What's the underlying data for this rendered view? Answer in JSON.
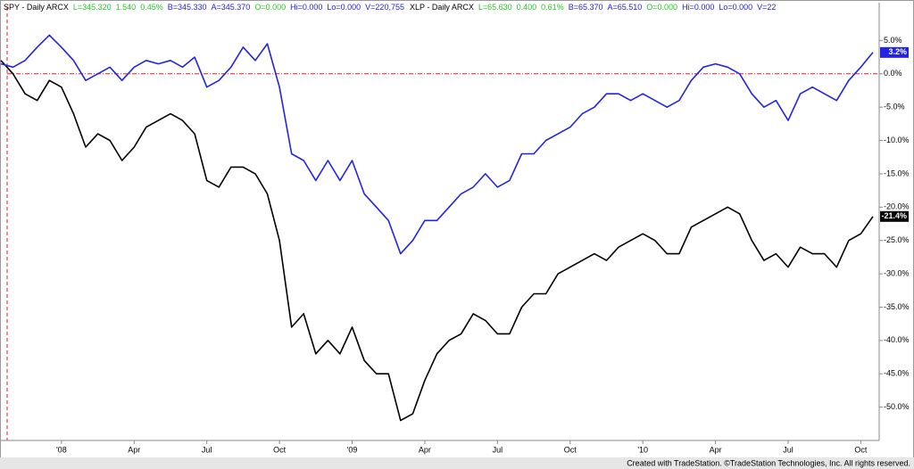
{
  "chart_data": {
    "type": "line",
    "series": [
      {
        "name": "SPY - Daily ARCX",
        "color": "#000000",
        "quote": [
          {
            "text": "L=345.320",
            "color": "#22cc22"
          },
          {
            "text": "1.540",
            "color": "#22cc22"
          },
          {
            "text": "0.45%",
            "color": "#22cc22"
          },
          {
            "text": "B=345.330",
            "color": "#2222dd"
          },
          {
            "text": "A=345.370",
            "color": "#2222dd"
          },
          {
            "text": "O=0.000",
            "color": "#22cc22"
          },
          {
            "text": "Hi=0.000",
            "color": "#2222dd"
          },
          {
            "text": "Lo=0.000",
            "color": "#2222dd"
          },
          {
            "text": "V=220,755",
            "color": "#2222dd"
          }
        ],
        "values": [
          2,
          0,
          -3,
          -4,
          -1,
          -2,
          -6,
          -11,
          -9,
          -10,
          -13,
          -11,
          -8,
          -7,
          -6,
          -7,
          -9,
          -16,
          -17,
          -14,
          -14,
          -15,
          -18,
          -25,
          -38,
          -36,
          -42,
          -40,
          -42,
          -38,
          -43,
          -45,
          -45,
          -52,
          -51,
          -46,
          -42,
          -40,
          -39,
          -36,
          -37,
          -39,
          -39,
          -35,
          -33,
          -33,
          -30,
          -29,
          -28,
          -27,
          -28,
          -26,
          -25,
          -24,
          -25,
          -27,
          -27,
          -23,
          -22,
          -21,
          -20,
          -21,
          -25,
          -28,
          -27,
          -29,
          -26,
          -27,
          -27,
          -29,
          -25,
          -24,
          -21.4
        ],
        "value_labels": [
          null,
          null,
          null,
          null,
          null,
          null,
          null,
          null,
          null,
          null,
          null,
          null,
          null,
          null,
          null,
          null,
          null,
          null,
          null,
          null,
          null,
          null,
          null,
          null,
          null,
          null,
          null,
          null,
          null,
          null,
          null,
          null,
          null,
          null,
          null,
          null,
          null,
          null,
          null,
          null,
          null,
          null,
          null,
          null,
          null,
          null,
          null,
          null,
          null,
          null,
          null,
          null,
          null,
          null,
          null,
          null,
          null,
          null,
          null,
          null,
          null,
          null,
          null,
          null,
          null,
          null,
          null,
          null,
          null,
          null,
          null,
          null,
          "-21.4%"
        ]
      },
      {
        "name": "XLP - Daily ARCX",
        "color": "#2323e6",
        "quote": [
          {
            "text": "L=65.630",
            "color": "#22cc22"
          },
          {
            "text": "0.400",
            "color": "#22cc22"
          },
          {
            "text": "0.61%",
            "color": "#22cc22"
          },
          {
            "text": "B=65.370",
            "color": "#2222dd"
          },
          {
            "text": "A=65.510",
            "color": "#2222dd"
          },
          {
            "text": "O=0.000",
            "color": "#22cc22"
          },
          {
            "text": "Hi=0.000",
            "color": "#2222dd"
          },
          {
            "text": "Lo=0.000",
            "color": "#2222dd"
          },
          {
            "text": "V=22",
            "color": "#2222dd"
          }
        ],
        "values": [
          1.5,
          1,
          2,
          4,
          5.8,
          4,
          2,
          -1,
          0,
          1,
          -1,
          1,
          2,
          1.5,
          2,
          1,
          2.5,
          -2,
          -1,
          1,
          4,
          2,
          4.5,
          -2,
          -12,
          -13,
          -16,
          -13,
          -16,
          -13,
          -18,
          -20,
          -22,
          -27,
          -25,
          -22,
          -22,
          -20,
          -18,
          -17,
          -15,
          -17,
          -16,
          -12,
          -12,
          -10,
          -9,
          -8,
          -6,
          -5,
          -3,
          -3,
          -4,
          -3,
          -4,
          -5,
          -4,
          -1,
          1,
          1.5,
          1,
          0,
          -3,
          -5,
          -4,
          -7,
          -3,
          -2,
          -3,
          -4,
          -1,
          1,
          3.2
        ],
        "value_labels": [
          null,
          null,
          null,
          null,
          null,
          null,
          null,
          null,
          null,
          null,
          null,
          null,
          null,
          null,
          null,
          null,
          null,
          null,
          null,
          null,
          null,
          null,
          null,
          null,
          null,
          null,
          null,
          null,
          null,
          null,
          null,
          null,
          null,
          null,
          null,
          null,
          null,
          null,
          null,
          null,
          null,
          null,
          null,
          null,
          null,
          null,
          null,
          null,
          null,
          null,
          null,
          null,
          null,
          null,
          null,
          null,
          null,
          null,
          null,
          null,
          null,
          null,
          null,
          null,
          null,
          null,
          null,
          null,
          null,
          null,
          null,
          null,
          "3.2%"
        ]
      }
    ],
    "categories": [
      null,
      null,
      null,
      null,
      null,
      "'08",
      null,
      null,
      null,
      null,
      null,
      "Apr",
      null,
      null,
      null,
      null,
      null,
      "Jul",
      null,
      null,
      null,
      null,
      null,
      "Oct",
      null,
      null,
      null,
      null,
      null,
      "'09",
      null,
      null,
      null,
      null,
      null,
      "Apr",
      null,
      null,
      null,
      null,
      null,
      "Jul",
      null,
      null,
      null,
      null,
      null,
      "Oct",
      null,
      null,
      null,
      null,
      null,
      "'10",
      null,
      null,
      null,
      null,
      null,
      "Apr",
      null,
      null,
      null,
      null,
      null,
      "Jul",
      null,
      null,
      null,
      null,
      null,
      "Oct",
      null
    ],
    "ylim": [
      -55,
      10
    ],
    "yticks": [
      {
        "value": 5,
        "label": "5.0%"
      },
      {
        "value": 0,
        "label": "0.0%"
      },
      {
        "value": -5,
        "label": "-5.0%"
      },
      {
        "value": -10,
        "label": "-10.0%"
      },
      {
        "value": -15,
        "label": "-15.0%"
      },
      {
        "value": -20,
        "label": "-20.0%"
      },
      {
        "value": -25,
        "label": "-25.0%"
      },
      {
        "value": -30,
        "label": "-30.0%"
      },
      {
        "value": -35,
        "label": "-35.0%"
      },
      {
        "value": -40,
        "label": "-40.0%"
      },
      {
        "value": -45,
        "label": "-45.0%"
      },
      {
        "value": -50,
        "label": "-50.0%"
      }
    ],
    "reference_line": 0,
    "reference_color": "#dd2222"
  },
  "footer": "Created with TradeStation. ©TradeStation Technologies, Inc. All rights reserved."
}
